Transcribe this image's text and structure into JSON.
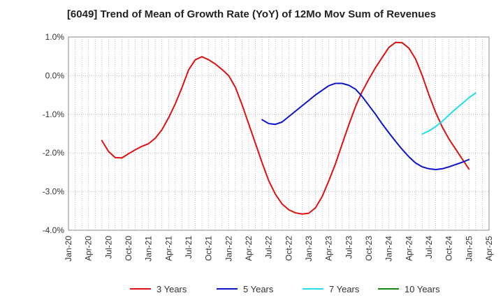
{
  "chart_data": {
    "type": "line",
    "title": "[6049]  Trend of Mean of Growth Rate (YoY) of 12Mo Mov Sum of Revenues",
    "xlabel": "",
    "ylabel": "",
    "ylim": [
      -4.0,
      1.0
    ],
    "y_ticks": [
      1.0,
      0.0,
      -1.0,
      -2.0,
      -3.0,
      -4.0
    ],
    "y_tick_labels": [
      "1.0%",
      "0.0%",
      "-1.0%",
      "-2.0%",
      "-3.0%",
      "-4.0%"
    ],
    "x_range": [
      "Jan-20",
      "Apr-25"
    ],
    "x_tick_labels": [
      "Jan-20",
      "Apr-20",
      "Jul-20",
      "Oct-20",
      "Jan-21",
      "Apr-21",
      "Jul-21",
      "Oct-21",
      "Jan-22",
      "Apr-22",
      "Jul-22",
      "Oct-22",
      "Jan-23",
      "Apr-23",
      "Jul-23",
      "Oct-23",
      "Jan-24",
      "Apr-24",
      "Jul-24",
      "Oct-24",
      "Jan-25",
      "Apr-25"
    ],
    "grid": true,
    "legend_position": "bottom",
    "series": [
      {
        "name": "3 Years",
        "color": "#dd1111",
        "start": "Jun-20",
        "values": [
          -1.68,
          -1.96,
          -2.12,
          -2.13,
          -2.02,
          -1.92,
          -1.83,
          -1.76,
          -1.62,
          -1.4,
          -1.09,
          -0.73,
          -0.31,
          0.15,
          0.41,
          0.49,
          0.41,
          0.3,
          0.16,
          0.0,
          -0.3,
          -0.75,
          -1.25,
          -1.75,
          -2.25,
          -2.72,
          -3.07,
          -3.32,
          -3.47,
          -3.55,
          -3.58,
          -3.56,
          -3.42,
          -3.13,
          -2.72,
          -2.28,
          -1.77,
          -1.27,
          -0.8,
          -0.41,
          -0.09,
          0.21,
          0.47,
          0.73,
          0.86,
          0.85,
          0.71,
          0.43,
          0.0,
          -0.5,
          -0.95,
          -1.33,
          -1.64,
          -1.9,
          -2.16,
          -2.42
        ]
      },
      {
        "name": "5 Years",
        "color": "#0a14c8",
        "start": "Jun-22",
        "values": [
          -1.14,
          -1.24,
          -1.26,
          -1.2,
          -1.06,
          -0.92,
          -0.78,
          -0.64,
          -0.5,
          -0.38,
          -0.26,
          -0.2,
          -0.2,
          -0.25,
          -0.35,
          -0.54,
          -0.77,
          -1.0,
          -1.25,
          -1.48,
          -1.7,
          -1.91,
          -2.1,
          -2.26,
          -2.36,
          -2.41,
          -2.43,
          -2.41,
          -2.36,
          -2.3,
          -2.24,
          -2.17
        ]
      },
      {
        "name": "7 Years",
        "color": "#22e0e8",
        "start": "Jun-24",
        "values": [
          -1.51,
          -1.43,
          -1.32,
          -1.18,
          -1.02,
          -0.86,
          -0.72,
          -0.57,
          -0.45
        ]
      },
      {
        "name": "10 Years",
        "color": "#118811",
        "start": "",
        "values": []
      }
    ]
  }
}
